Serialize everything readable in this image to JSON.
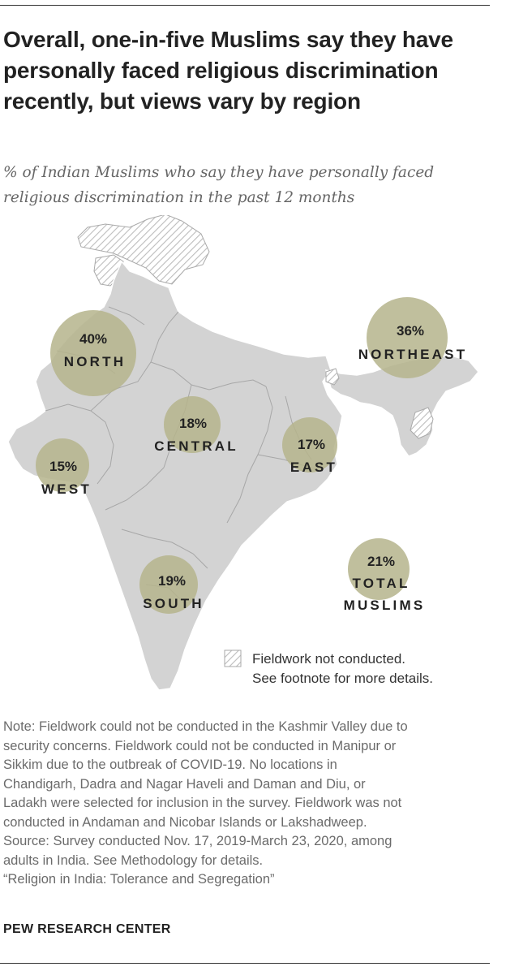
{
  "title": "Overall, one-in-five Muslims say they have personally faced religious discrimination recently, but views vary by region",
  "subtitle": "% of Indian Muslims who say they have personally faced religious discrimination in the past 12 months",
  "colors": {
    "bubble": "#b5b48c",
    "land": "#d3d3d3",
    "border": "#9a9a9a",
    "hatch": "#b9b9b9"
  },
  "regions": [
    {
      "id": "north",
      "name": "NORTH",
      "value": 40,
      "label": "40%"
    },
    {
      "id": "northeast",
      "name": "NORTHEAST",
      "value": 36,
      "label": "36%"
    },
    {
      "id": "central",
      "name": "CENTRAL",
      "value": 18,
      "label": "18%"
    },
    {
      "id": "east",
      "name": "EAST",
      "value": 17,
      "label": "17%"
    },
    {
      "id": "west",
      "name": "WEST",
      "value": 15,
      "label": "15%"
    },
    {
      "id": "south",
      "name": "SOUTH",
      "value": 19,
      "label": "19%"
    },
    {
      "id": "total",
      "name_line1": "TOTAL",
      "name_line2": "MUSLIMS",
      "value": 21,
      "label": "21%"
    }
  ],
  "legend": {
    "line1": "Fieldwork not conducted.",
    "line2": "See footnote for more details."
  },
  "note_lines": [
    "Note: Fieldwork could not be conducted in the Kashmir Valley due to",
    "security concerns. Fieldwork could not be conducted in Manipur or",
    "Sikkim due to the outbreak of COVID-19. No locations in",
    "Chandigarh, Dadra and Nagar Haveli and Daman and Diu, or",
    "Ladakh were selected for inclusion in the survey. Fieldwork was not",
    "conducted in Andaman and Nicobar Islands or Lakshadweep.",
    "Source: Survey conducted Nov. 17, 2019-March 23, 2020, among",
    "adults in India. See Methodology for details.",
    "“Religion in India: Tolerance and Segregation”"
  ],
  "source_org": "PEW RESEARCH CENTER"
}
